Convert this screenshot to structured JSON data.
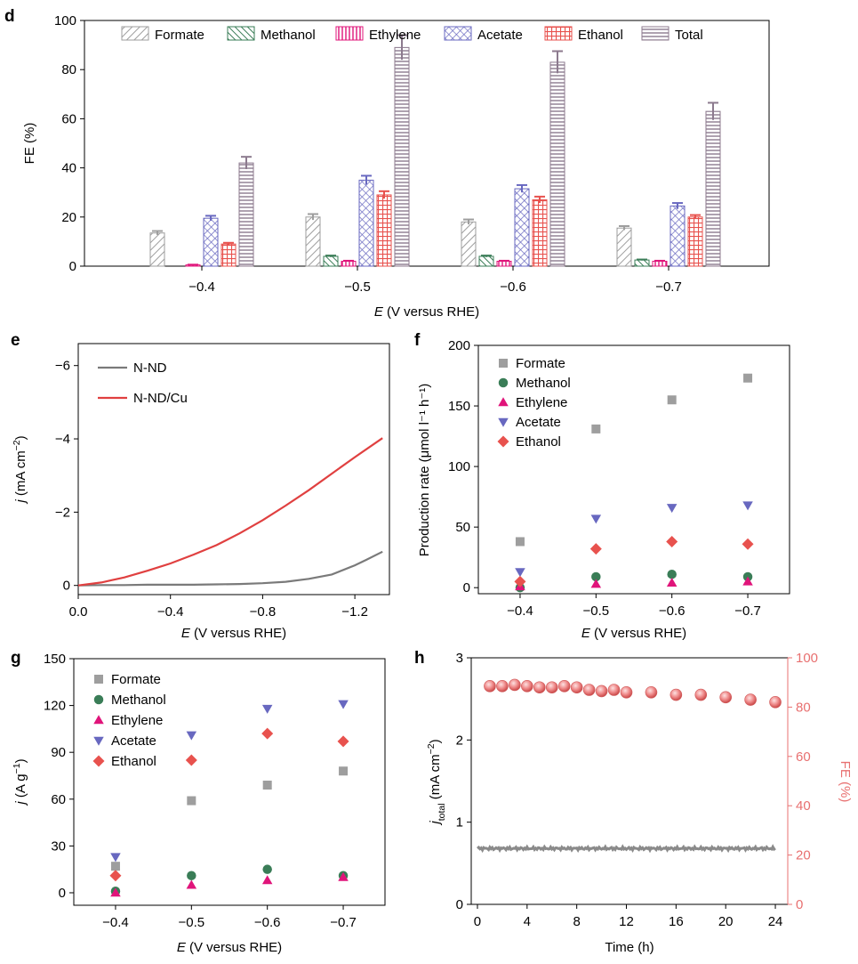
{
  "colors": {
    "Formate": "#9e9e9e",
    "Methanol": "#3a7d57",
    "Ethylene": "#e0147a",
    "Acetate": "#6868c0",
    "Ethanol": "#e8524e",
    "Total": "#8c7a8e",
    "N-ND": "#7a7a7a",
    "N-ND/Cu": "#e04040",
    "fe_red": "#e87070"
  },
  "chart_data": [
    {
      "panel": "d",
      "type": "bar",
      "xlabel_italic": "E",
      "xlabel_rest": " (V versus RHE)",
      "ylabel": "FE (%)",
      "ylim": [
        0,
        100
      ],
      "yticks": [
        0,
        20,
        40,
        60,
        80,
        100
      ],
      "categories": [
        "−0.4",
        "−0.5",
        "−0.6",
        "−0.7"
      ],
      "legend": "top",
      "series": [
        {
          "name": "Formate",
          "values": [
            13.5,
            20,
            18,
            15.5
          ],
          "err": [
            0.8,
            1.2,
            1.0,
            0.8
          ]
        },
        {
          "name": "Methanol",
          "values": [
            0,
            4,
            4,
            2.5
          ],
          "err": [
            0,
            0.3,
            0.3,
            0.2
          ]
        },
        {
          "name": "Ethylene",
          "values": [
            0.5,
            2,
            2,
            2
          ],
          "err": [
            0.1,
            0.2,
            0.2,
            0.2
          ]
        },
        {
          "name": "Acetate",
          "values": [
            19.5,
            35,
            31.5,
            24.5
          ],
          "err": [
            1,
            1.8,
            1.5,
            1.2
          ]
        },
        {
          "name": "Ethanol",
          "values": [
            9,
            29,
            27,
            20
          ],
          "err": [
            0.5,
            1.5,
            1.3,
            0.8
          ]
        },
        {
          "name": "Total",
          "values": [
            42,
            89,
            83,
            63
          ],
          "err": [
            2.5,
            5,
            4.5,
            3.5
          ]
        }
      ]
    },
    {
      "panel": "e",
      "type": "line",
      "xlabel_italic": "E",
      "xlabel_rest": " (V versus RHE)",
      "ylabel_italic": "j",
      "ylabel_rest": " (mA cm",
      "ylabel_sup": "−2",
      "ylabel_close": ")",
      "xlim": [
        0.0,
        -1.35
      ],
      "ylim": [
        0.25,
        -6.6
      ],
      "xticks": [
        {
          "v": 0.0,
          "t": "0.0"
        },
        {
          "v": -0.4,
          "t": "−0.4"
        },
        {
          "v": -0.8,
          "t": "−0.8"
        },
        {
          "v": -1.2,
          "t": "−1.2"
        }
      ],
      "yticks": [
        {
          "v": 0,
          "t": "0"
        },
        {
          "v": -2,
          "t": "−2"
        },
        {
          "v": -4,
          "t": "−4"
        },
        {
          "v": -6,
          "t": "−6"
        }
      ],
      "legend": "top-left",
      "series": [
        {
          "name": "N-ND",
          "x": [
            0.0,
            -0.1,
            -0.2,
            -0.3,
            -0.4,
            -0.5,
            -0.6,
            -0.7,
            -0.8,
            -0.9,
            -1.0,
            -1.1,
            -1.2,
            -1.25,
            -1.32
          ],
          "y": [
            0,
            -0.01,
            -0.01,
            -0.02,
            -0.02,
            -0.02,
            -0.03,
            -0.04,
            -0.06,
            -0.1,
            -0.18,
            -0.3,
            -0.55,
            -0.7,
            -0.92
          ]
        },
        {
          "name": "N-ND/Cu",
          "x": [
            0.0,
            -0.1,
            -0.2,
            -0.3,
            -0.4,
            -0.5,
            -0.6,
            -0.7,
            -0.8,
            -0.9,
            -1.0,
            -1.1,
            -1.2,
            -1.32
          ],
          "y": [
            0,
            -0.08,
            -0.22,
            -0.4,
            -0.6,
            -0.84,
            -1.1,
            -1.42,
            -1.78,
            -2.18,
            -2.6,
            -3.05,
            -3.5,
            -4.02
          ]
        }
      ]
    },
    {
      "panel": "f",
      "type": "scatter",
      "xlabel_italic": "E",
      "xlabel_rest": " (V versus RHE)",
      "ylabel": "Production rate (μmol l⁻¹ h⁻¹)",
      "ylim": [
        -5,
        200
      ],
      "yticks": [
        0,
        50,
        100,
        150,
        200
      ],
      "categories": [
        "−0.4",
        "−0.5",
        "−0.6",
        "−0.7"
      ],
      "legend": "top-left",
      "series": [
        {
          "name": "Formate",
          "marker": "square",
          "values": [
            38,
            131,
            155,
            173
          ]
        },
        {
          "name": "Methanol",
          "marker": "circle",
          "values": [
            0,
            9,
            11,
            9
          ]
        },
        {
          "name": "Ethylene",
          "marker": "triangle-up",
          "values": [
            1,
            3,
            4,
            5
          ]
        },
        {
          "name": "Acetate",
          "marker": "triangle-down",
          "values": [
            13,
            57,
            66,
            68
          ]
        },
        {
          "name": "Ethanol",
          "marker": "diamond",
          "values": [
            5,
            32,
            38,
            36
          ]
        }
      ]
    },
    {
      "panel": "g",
      "type": "scatter",
      "xlabel_italic": "E",
      "xlabel_rest": " (V versus RHE)",
      "ylabel_italic": "j",
      "ylabel_rest": " (A g",
      "ylabel_sup": "−1",
      "ylabel_close": ")",
      "ylim": [
        -8,
        150
      ],
      "yticks": [
        0,
        30,
        60,
        90,
        120,
        150
      ],
      "categories": [
        "−0.4",
        "−0.5",
        "−0.6",
        "−0.7"
      ],
      "legend": "top-left",
      "series": [
        {
          "name": "Formate",
          "marker": "square",
          "values": [
            17,
            59,
            69,
            78
          ]
        },
        {
          "name": "Methanol",
          "marker": "circle",
          "values": [
            1,
            11,
            15,
            11
          ]
        },
        {
          "name": "Ethylene",
          "marker": "triangle-up",
          "values": [
            0,
            5,
            8,
            10
          ]
        },
        {
          "name": "Acetate",
          "marker": "triangle-down",
          "values": [
            23,
            101,
            118,
            121
          ]
        },
        {
          "name": "Ethanol",
          "marker": "diamond",
          "values": [
            11,
            85,
            102,
            97
          ]
        }
      ]
    },
    {
      "panel": "h",
      "type": "scatter",
      "xlabel": "Time (h)",
      "ylabel_italic": "j",
      "ylabel_sub": "total",
      "ylabel_rest": " (mA cm",
      "ylabel_sup": "−2",
      "ylabel_close": ")",
      "y2label": "FE (%)",
      "xlim": [
        -0.5,
        25
      ],
      "xticks": [
        0,
        4,
        8,
        12,
        16,
        20,
        24
      ],
      "ylim": [
        0,
        3
      ],
      "yticks": [
        0,
        1,
        2,
        3
      ],
      "y2lim": [
        0,
        100
      ],
      "y2ticks": [
        0,
        20,
        40,
        60,
        80,
        100
      ],
      "current": {
        "x_start": 0,
        "x_end": 24,
        "value": 0.68
      },
      "fe": {
        "x": [
          1,
          2,
          3,
          4,
          5,
          6,
          7,
          8,
          9,
          10,
          11,
          12,
          14,
          16,
          18,
          20,
          22,
          24
        ],
        "y": [
          88.5,
          88.5,
          89,
          88.5,
          88,
          88,
          88.5,
          88,
          87,
          86.5,
          87,
          86,
          86,
          85,
          85,
          84,
          83,
          82
        ]
      }
    }
  ],
  "panels": {
    "d": "d",
    "e": "e",
    "f": "f",
    "g": "g",
    "h": "h"
  }
}
